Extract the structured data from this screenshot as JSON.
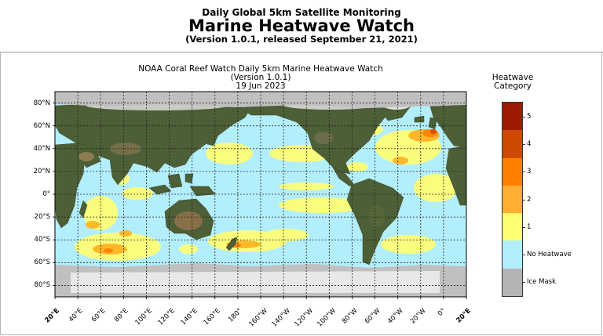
{
  "header": {
    "subtitle": "Daily Global 5km Satellite Monitoring",
    "title": "Marine Heatwave Watch",
    "version": "(Version 1.0.1, released September 21, 2021)"
  },
  "map": {
    "title_line1": "NOAA Coral Reef Watch Daily 5km Marine Heatwave Watch",
    "title_line2": "(Version 1.0.1)",
    "date": "19 Jun 2023",
    "lat_labels": [
      "80°N",
      "60°N",
      "40°N",
      "20°N",
      "0°",
      "20°S",
      "40°S",
      "60°S",
      "80°S"
    ],
    "lon_labels": [
      "20°E",
      "40°E",
      "60°E",
      "80°E",
      "100°E",
      "120°E",
      "140°E",
      "160°E",
      "180°",
      "160°W",
      "140°W",
      "120°W",
      "100°W",
      "80°W",
      "60°W",
      "40°W",
      "20°W",
      "0°",
      "20°E"
    ],
    "lat_range": [
      -90,
      90
    ],
    "lon_range": [
      20,
      380
    ],
    "grid_step_degrees": 20,
    "colors": {
      "ocean": "#b3eefc",
      "ice": "#c0c0c0",
      "land": "#4a5e34",
      "heat1": "#ffff73",
      "heat2": "#ffb01f",
      "heat3": "#ff7f00",
      "heat4": "#d94a00",
      "heat5": "#9e1a00"
    }
  },
  "legend": {
    "title_line1": "Heatwave",
    "title_line2": "Category",
    "categories": [
      {
        "label": "5",
        "color": "#9e1a00"
      },
      {
        "label": "4",
        "color": "#cf4a00"
      },
      {
        "label": "3",
        "color": "#ff7f00"
      },
      {
        "label": "2",
        "color": "#ffb030"
      },
      {
        "label": "1",
        "color": "#ffff73"
      },
      {
        "label": "No Heatwave",
        "color": "#b3eefc"
      },
      {
        "label": "Ice Mask",
        "color": "#b4b4b4"
      }
    ]
  }
}
